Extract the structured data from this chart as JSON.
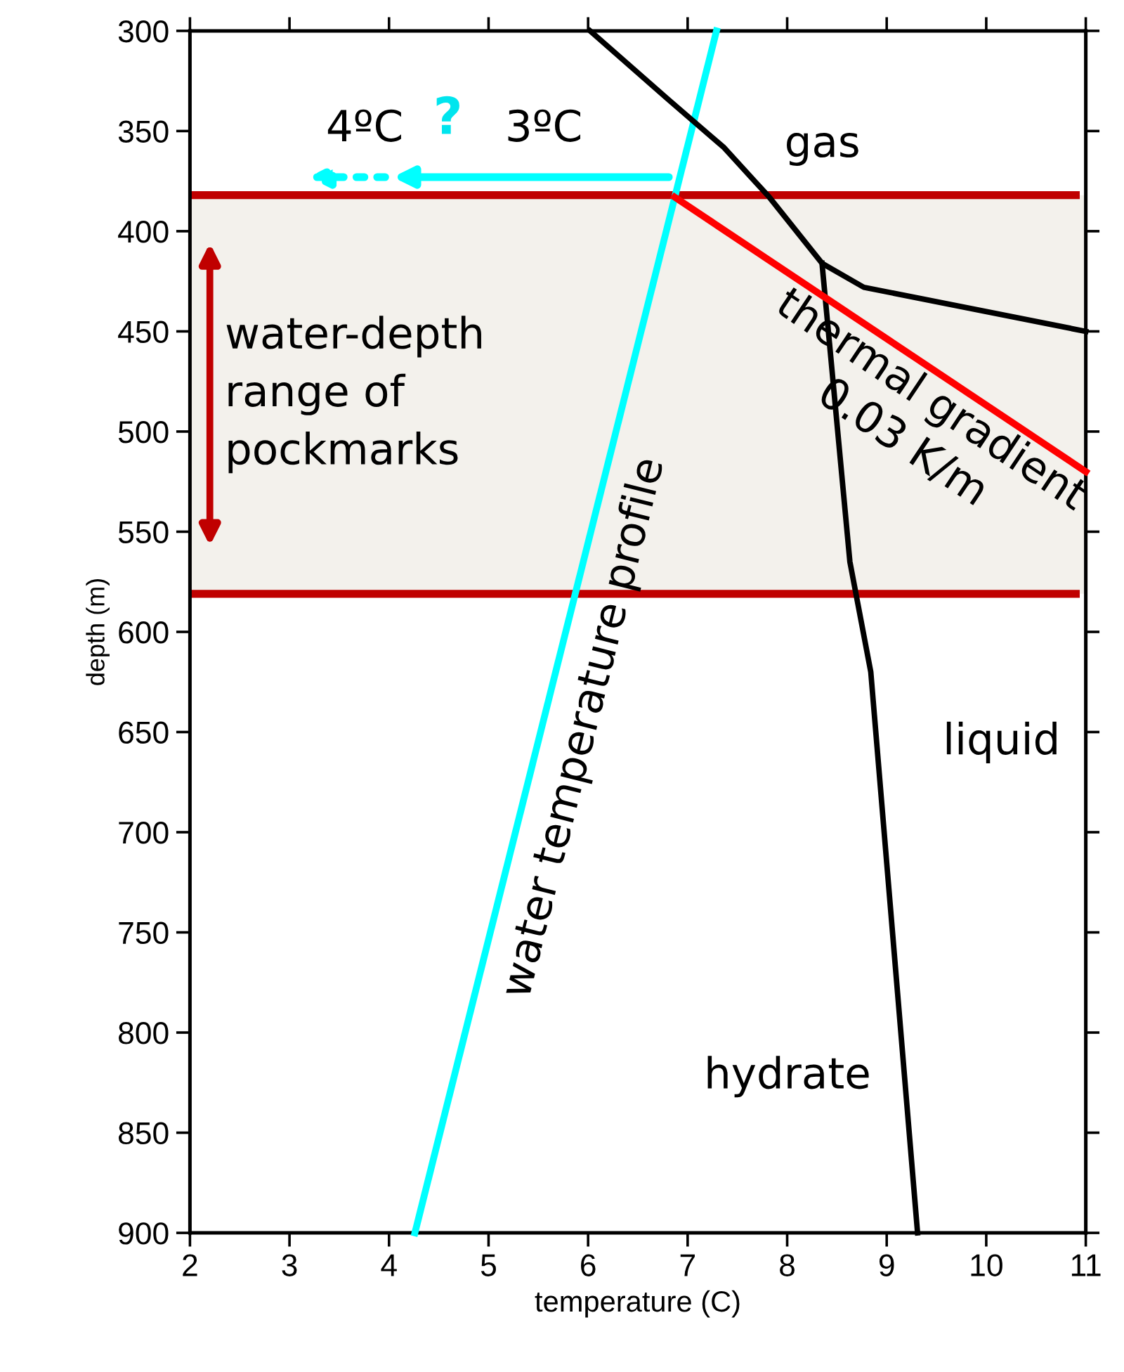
{
  "chart_data": {
    "type": "line",
    "xlabel": "temperature (C)",
    "ylabel": "depth (m)",
    "xlim": [
      2,
      11
    ],
    "ylim": [
      900,
      300
    ],
    "xticks": [
      2,
      3,
      4,
      5,
      6,
      7,
      8,
      9,
      10,
      11
    ],
    "yticks": [
      300,
      350,
      400,
      450,
      500,
      550,
      600,
      650,
      700,
      750,
      800,
      850,
      900
    ],
    "grid": false,
    "line_style": "solid",
    "marker": "none",
    "series": [
      {
        "name": "water temperature profile",
        "color": "#00ffff",
        "x": [
          7.29,
          4.26
        ],
        "values": [
          300,
          900
        ]
      },
      {
        "color": "#000000",
        "x": [
          6.02,
          6.8,
          7.36,
          7.82,
          8.35,
          8.77,
          11
        ],
        "values": [
          300,
          334,
          358,
          383,
          416,
          428,
          450
        ]
      },
      {
        "color": "#000000",
        "x": [
          8.35,
          8.63,
          8.84,
          9.31
        ],
        "values": [
          416,
          565,
          620,
          900
        ]
      },
      {
        "name": "thermal gradient\n0.03 K/m",
        "color": "#ff0000",
        "x": [
          6.87,
          11
        ],
        "values": [
          383,
          520
        ]
      }
    ],
    "ref_lines": [
      {
        "axis": "y",
        "value": 382,
        "color": "#c00000"
      },
      {
        "axis": "y",
        "value": 581,
        "color": "#c00000"
      }
    ],
    "bands": [
      {
        "axis": "y",
        "from": 382,
        "to": 581,
        "label": "water-depth\nrange of\npockmarks",
        "color": "#f3f1ec"
      }
    ],
    "annotations": [
      "gas",
      "liquid",
      "hydrate",
      "4ºC",
      "?",
      "3ºC"
    ]
  }
}
